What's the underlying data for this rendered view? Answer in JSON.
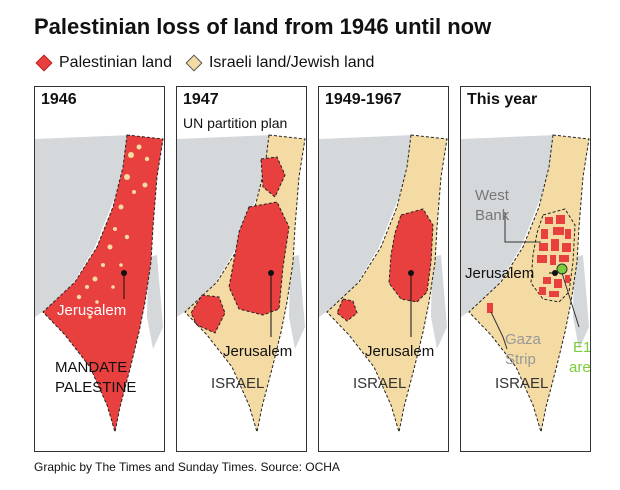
{
  "title": "Palestinian loss of land from 1946 until now",
  "legend": [
    {
      "label": "Palestinian land",
      "color": "#e8403f"
    },
    {
      "label": "Israeli land/Jewish land",
      "color": "#f4dba4"
    }
  ],
  "colors": {
    "sea": "#d4d8db",
    "palestinian": "#e8403f",
    "israeli": "#f4dba4",
    "e1": "#7ccd3c",
    "border": "#333333"
  },
  "panels": [
    {
      "title": "1946",
      "subtitle": "",
      "labels": {
        "jerusalem": "Jerusalem",
        "region_line1": "MANDATE",
        "region_line2": "PALESTINE"
      }
    },
    {
      "title": "1947",
      "subtitle": "UN partition plan",
      "labels": {
        "jerusalem": "Jerusalem",
        "region": "ISRAEL"
      }
    },
    {
      "title": "1949-1967",
      "subtitle": "",
      "labels": {
        "jerusalem": "Jerusalem",
        "region": "ISRAEL"
      }
    },
    {
      "title": "This year",
      "subtitle": "",
      "labels": {
        "west_bank_line1": "West",
        "west_bank_line2": "Bank",
        "jerusalem": "Jerusalem",
        "gaza_line1": "Gaza",
        "gaza_line2": "Strip",
        "region": "ISRAEL",
        "e1_line1": "E1",
        "e1_line2": "area"
      }
    }
  ],
  "footer": "Graphic by The Times and Sunday Times. Source: OCHA"
}
